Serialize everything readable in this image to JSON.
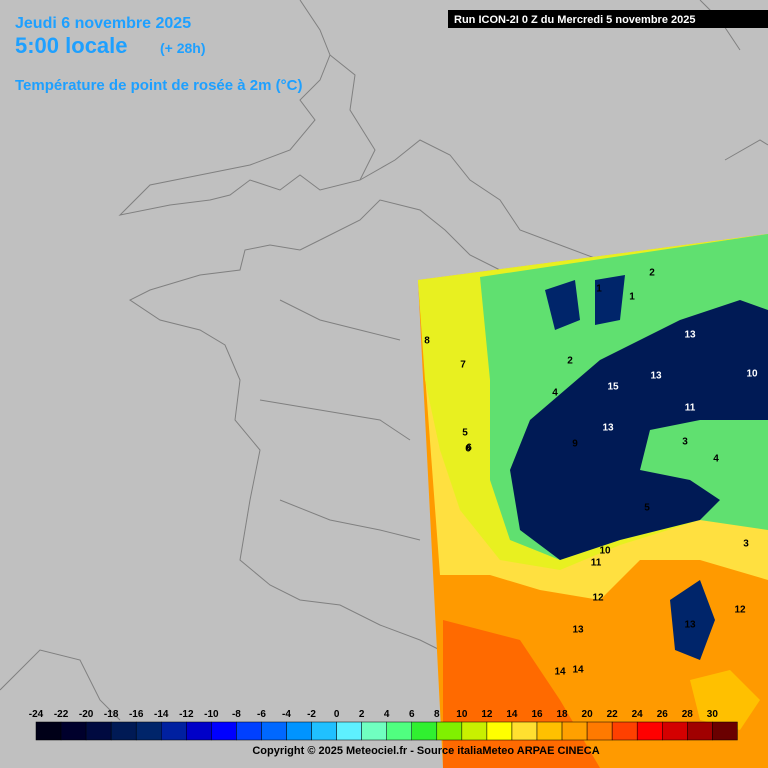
{
  "header": {
    "date": "Jeudi 6 novembre 2025",
    "time": "5:00 locale",
    "lead": "(+ 28h)",
    "parameter": "Température de point de rosée à 2m (°C)",
    "run": "Run ICON-2I 0 Z du Mercredi 5 novembre 2025"
  },
  "map": {
    "labels": [
      7,
      8,
      6,
      5,
      4,
      9,
      13,
      13,
      11,
      10,
      2,
      1,
      1,
      2,
      4,
      3,
      13,
      15,
      14,
      12,
      11,
      10,
      14,
      13,
      5,
      6,
      13,
      12,
      3
    ]
  },
  "legend": {
    "ticks": [
      -24,
      -22,
      -20,
      -18,
      -16,
      -14,
      -12,
      -10,
      -8,
      -6,
      -4,
      -2,
      0,
      2,
      4,
      6,
      8,
      10,
      12,
      14,
      16,
      18,
      20,
      22,
      24,
      26,
      28,
      30
    ],
    "colors": [
      "#000018",
      "#00002c",
      "#000a40",
      "#001a55",
      "#00256a",
      "#0020a0",
      "#0000c8",
      "#0000ff",
      "#0040ff",
      "#0068ff",
      "#0094ff",
      "#20c0ff",
      "#5ef0ff",
      "#70ffc0",
      "#50ff80",
      "#30f030",
      "#80f000",
      "#c8f000",
      "#ffff00",
      "#ffe030",
      "#ffc000",
      "#ffa000",
      "#ff7a00",
      "#ff4000",
      "#ff0000",
      "#d40000",
      "#a00000",
      "#6a0000"
    ]
  },
  "footer": {
    "copyright": "Copyright © 2025 Meteociel.fr - Source italiaMeteo ARPAE CINECA"
  }
}
